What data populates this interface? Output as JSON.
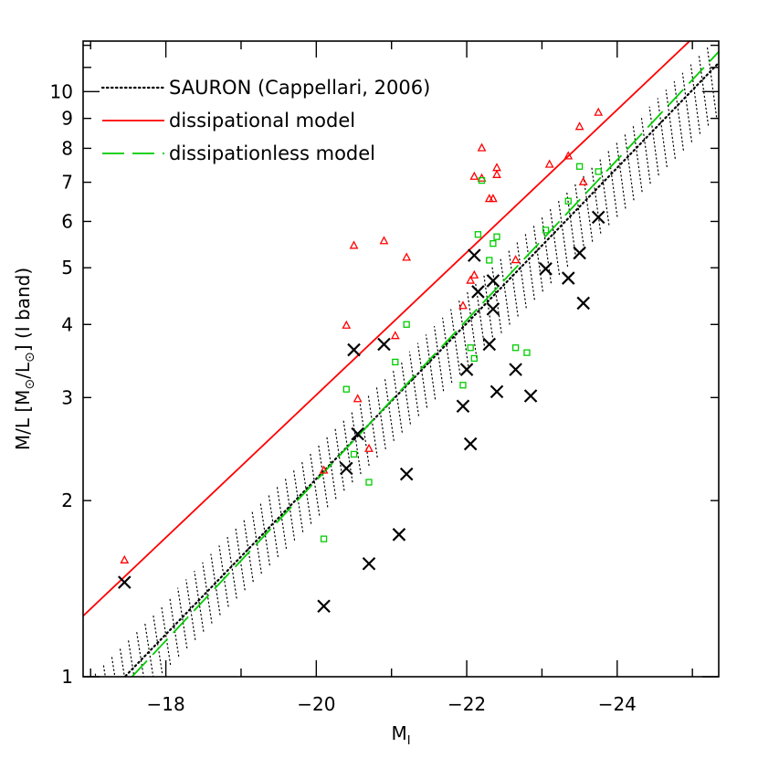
{
  "chart_data": {
    "type": "scatter",
    "xlabel": {
      "main": "M",
      "sub": "I"
    },
    "ylabel": {
      "prefix": "M/L [M",
      "sym1": "⊙",
      "mid": "/L",
      "sym2": "⊙",
      "suffix": "]  (I band)"
    },
    "xlim": [
      -16.9,
      -25.35
    ],
    "ylim": [
      1,
      12.2
    ],
    "yscale": "log",
    "x_ticks_major": [
      -18,
      -20,
      -22,
      -24
    ],
    "x_tick_labels": [
      "−18",
      "−20",
      "−22",
      "−24"
    ],
    "y_ticks_labeled": [
      1,
      2,
      3,
      4,
      5,
      6,
      7,
      8,
      9,
      10
    ],
    "y_tick_labels": [
      "1",
      "2",
      "3",
      "4",
      "5",
      "6",
      "7",
      "8",
      "9",
      "10"
    ],
    "legend": [
      {
        "label": "SAURON (Cappellari, 2006)",
        "style": "dotted",
        "color": "#000000"
      },
      {
        "label": "dissipational model",
        "style": "solid",
        "color": "#ff0000"
      },
      {
        "label": "dissipationless model",
        "style": "dashed",
        "color": "#00cc00"
      }
    ],
    "legend_position": "top-left",
    "lines": {
      "sauron_center": {
        "x": [
          -17.0,
          -25.35
        ],
        "y": [
          0.87,
          11.2
        ]
      },
      "sauron_band_upper": {
        "x": [
          -17.0,
          -25.35
        ],
        "y": [
          0.98,
          12.2
        ]
      },
      "sauron_band_lower": {
        "x": [
          -17.0,
          -25.35
        ],
        "y": [
          0.78,
          9.3
        ]
      },
      "dissipational": {
        "x": [
          -16.9,
          -25.35
        ],
        "y": [
          1.27,
          13.6
        ]
      },
      "dissipationless": {
        "x": [
          -17.55,
          -25.35
        ],
        "y": [
          1.0,
          11.7
        ]
      }
    },
    "series": [
      {
        "name": "crosses",
        "marker": "x",
        "color": "#000000",
        "x": [
          -17.45,
          -20.1,
          -20.4,
          -20.5,
          -20.55,
          -20.7,
          -20.9,
          -21.1,
          -21.2,
          -21.95,
          -22.0,
          -22.05,
          -22.1,
          -22.15,
          -22.3,
          -22.35,
          -22.35,
          -22.4,
          -22.65,
          -22.85,
          -23.05,
          -23.35,
          -23.5,
          -23.55,
          -23.75
        ],
        "y": [
          1.45,
          1.32,
          2.27,
          3.62,
          2.6,
          1.56,
          3.7,
          1.75,
          2.22,
          2.9,
          3.35,
          2.5,
          5.25,
          4.55,
          3.7,
          4.75,
          4.25,
          3.07,
          3.35,
          3.02,
          4.98,
          4.8,
          5.3,
          4.35,
          6.1
        ]
      },
      {
        "name": "red triangles",
        "marker": "triangle",
        "color": "#ff0000",
        "x": [
          -17.45,
          -20.1,
          -20.4,
          -20.5,
          -20.55,
          -20.7,
          -20.9,
          -21.05,
          -21.2,
          -21.95,
          -22.05,
          -22.1,
          -22.1,
          -22.2,
          -22.2,
          -22.3,
          -22.35,
          -22.4,
          -22.4,
          -22.65,
          -23.1,
          -23.35,
          -23.5,
          -23.55,
          -23.75
        ],
        "y": [
          1.58,
          2.25,
          3.98,
          5.45,
          2.98,
          2.45,
          5.55,
          3.82,
          5.2,
          4.3,
          4.75,
          4.85,
          7.15,
          8.0,
          7.1,
          6.55,
          6.55,
          7.4,
          7.2,
          5.15,
          7.5,
          7.75,
          8.7,
          7.0,
          9.2
        ]
      },
      {
        "name": "green squares",
        "marker": "square",
        "color": "#00cc00",
        "x": [
          -20.1,
          -20.4,
          -20.5,
          -20.7,
          -21.05,
          -21.2,
          -21.95,
          -22.05,
          -22.1,
          -22.15,
          -22.2,
          -22.3,
          -22.35,
          -22.4,
          -22.65,
          -22.8,
          -23.05,
          -23.35,
          -23.5,
          -23.75
        ],
        "y": [
          1.72,
          3.1,
          2.4,
          2.15,
          3.45,
          4.0,
          3.15,
          3.65,
          3.5,
          5.7,
          7.05,
          5.15,
          5.5,
          5.65,
          3.65,
          3.58,
          5.8,
          6.5,
          7.45,
          7.3
        ]
      }
    ]
  }
}
